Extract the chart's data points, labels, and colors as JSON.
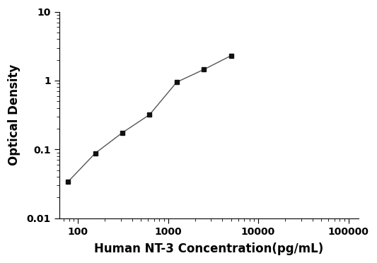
{
  "x_values": [
    78,
    156,
    312,
    625,
    1250,
    2500,
    5000
  ],
  "y_values": [
    0.034,
    0.088,
    0.175,
    0.32,
    0.95,
    1.45,
    2.3
  ],
  "xlabel": "Human NT-3 Concentration(pg/mL)",
  "ylabel": "Optical Density",
  "xlim": [
    62,
    130000
  ],
  "ylim": [
    0.01,
    10
  ],
  "xticks": [
    100,
    1000,
    10000,
    100000
  ],
  "yticks": [
    0.01,
    0.1,
    1,
    10
  ],
  "marker": "s",
  "marker_color": "#111111",
  "marker_size": 5,
  "line_color": "#555555",
  "line_width": 1.0,
  "background_color": "#ffffff",
  "xlabel_fontsize": 12,
  "ylabel_fontsize": 12,
  "xlabel_fontweight": "bold",
  "ylabel_fontweight": "bold",
  "tick_fontsize": 10,
  "tick_fontweight": "bold"
}
